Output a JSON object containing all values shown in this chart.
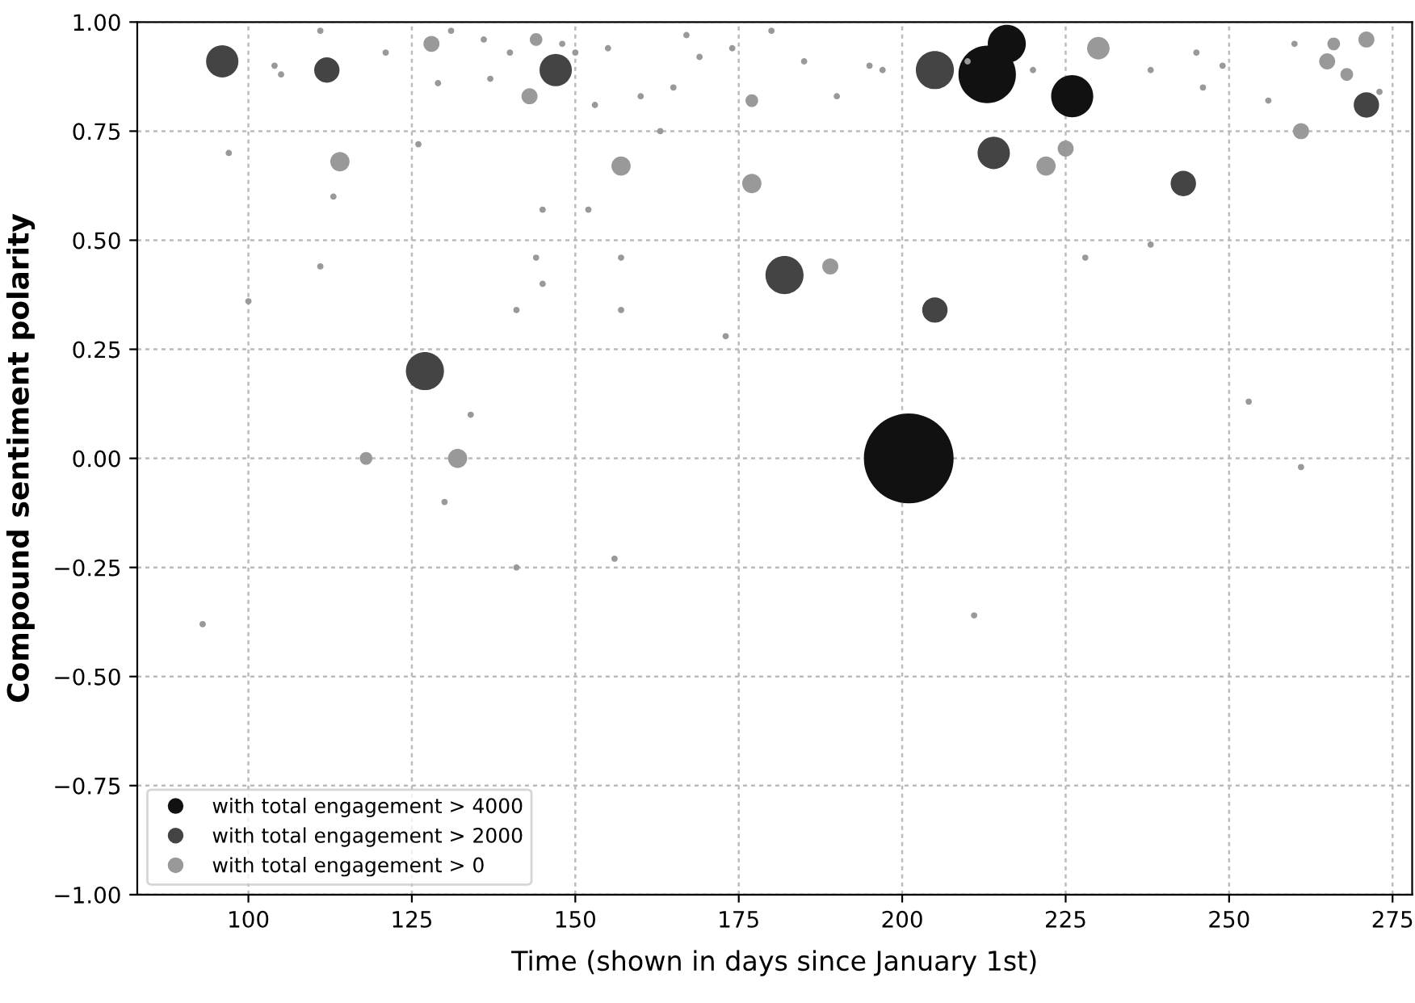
{
  "chart_data": {
    "type": "bubble",
    "xlabel": "Time (shown in days since January 1st)",
    "ylabel": "Compound sentiment polarity",
    "xlim": [
      83,
      278
    ],
    "xticks": [
      100,
      125,
      150,
      175,
      200,
      225,
      250,
      275
    ],
    "ylim": [
      -1.0,
      1.0
    ],
    "yticks": [
      {
        "value": -1.0,
        "label": "−1.00"
      },
      {
        "value": -0.75,
        "label": "−0.75"
      },
      {
        "value": -0.5,
        "label": "−0.50"
      },
      {
        "value": -0.25,
        "label": "−0.25"
      },
      {
        "value": 0.0,
        "label": "0.00"
      },
      {
        "value": 0.25,
        "label": "0.25"
      },
      {
        "value": 0.5,
        "label": "0.50"
      },
      {
        "value": 0.75,
        "label": "0.75"
      },
      {
        "value": 1.0,
        "label": "1.00"
      }
    ],
    "grid": true,
    "legend": "bottom left",
    "marker": "circle",
    "series": [
      {
        "name": "with total engagement > 4000",
        "color": "#111111",
        "x": [
          201,
          213,
          216,
          226
        ],
        "values": [
          0.0,
          0.88,
          0.95,
          0.83
        ],
        "sizes": [
          1,
          0.41,
          0.18,
          0.22
        ]
      },
      {
        "name": "with total engagement > 2000",
        "color": "#444444",
        "x": [
          96,
          112,
          147,
          127,
          182,
          205,
          205,
          214,
          243,
          271
        ],
        "values": [
          0.91,
          0.89,
          0.89,
          0.2,
          0.42,
          0.89,
          0.34,
          0.7,
          0.63,
          0.81
        ],
        "sizes": [
          0.13,
          0.08,
          0.13,
          0.18,
          0.18,
          0.18,
          0.08,
          0.13,
          0.08,
          0.08
        ]
      },
      {
        "name": "with total engagement > 0",
        "color": "#999999",
        "x": [
          114,
          132,
          157,
          177,
          189,
          222,
          225,
          230,
          261,
          118,
          128,
          143,
          144,
          177,
          266,
          271,
          268,
          265,
          93,
          100,
          97,
          104,
          111,
          111,
          113,
          126,
          129,
          130,
          131,
          134,
          136,
          141,
          141,
          144,
          145,
          145,
          152,
          156,
          157,
          157,
          160,
          163,
          169,
          173,
          174,
          180,
          190,
          197,
          211,
          210,
          228,
          238,
          246,
          253,
          261,
          256,
          245,
          260,
          150,
          155,
          148,
          137,
          121,
          165,
          185,
          195,
          220,
          238,
          249,
          273,
          105,
          140,
          153,
          167
        ],
        "values": [
          0.68,
          0.0,
          0.67,
          0.63,
          0.44,
          0.67,
          0.71,
          0.94,
          0.75,
          0.0,
          0.95,
          0.83,
          0.96,
          0.82,
          0.95,
          0.96,
          0.88,
          0.91,
          -0.38,
          0.36,
          0.7,
          0.9,
          0.44,
          0.98,
          0.6,
          0.72,
          0.86,
          -0.1,
          0.98,
          0.1,
          0.96,
          -0.25,
          0.34,
          0.46,
          0.4,
          0.57,
          0.57,
          -0.23,
          0.46,
          0.34,
          0.83,
          0.75,
          0.92,
          0.28,
          0.94,
          0.98,
          0.83,
          0.89,
          -0.36,
          0.91,
          0.46,
          0.49,
          0.85,
          0.13,
          -0.02,
          0.82,
          0.93,
          0.95,
          0.93,
          0.94,
          0.95,
          0.87,
          0.93,
          0.85,
          0.91,
          0.9,
          0.89,
          0.89,
          0.9,
          0.84,
          0.88,
          0.93,
          0.81,
          0.97
        ],
        "sizes": [
          0.046,
          0.046,
          0.046,
          0.046,
          0.032,
          0.046,
          0.032,
          0.063,
          0.032,
          0.02,
          0.032,
          0.032,
          0.02,
          0.02,
          0.02,
          0.032,
          0.02,
          0.032,
          0.005,
          0.005,
          0.005,
          0.005,
          0.005,
          0.005,
          0.005,
          0.005,
          0.005,
          0.005,
          0.005,
          0.005,
          0.005,
          0.005,
          0.005,
          0.005,
          0.005,
          0.005,
          0.005,
          0.005,
          0.005,
          0.005,
          0.005,
          0.005,
          0.005,
          0.005,
          0.005,
          0.005,
          0.005,
          0.005,
          0.005,
          0.005,
          0.005,
          0.005,
          0.005,
          0.005,
          0.005,
          0.005,
          0.005,
          0.005,
          0.005,
          0.005,
          0.005,
          0.005,
          0.005,
          0.005,
          0.005,
          0.005,
          0.005,
          0.005,
          0.005,
          0.005,
          0.005,
          0.005,
          0.005,
          0.005
        ]
      }
    ]
  }
}
